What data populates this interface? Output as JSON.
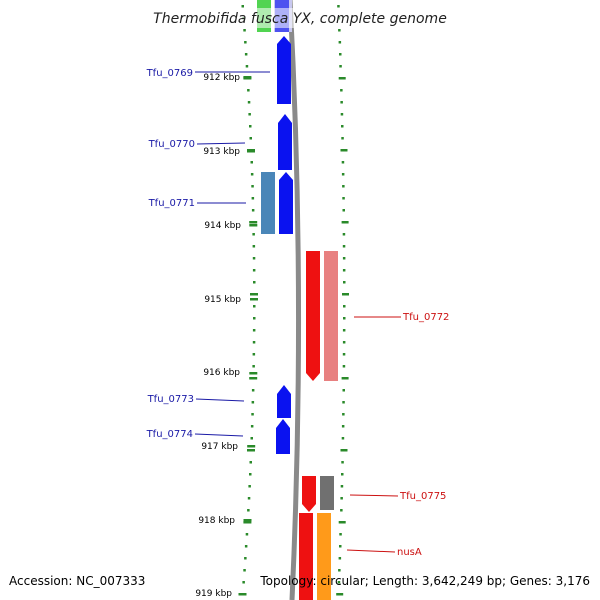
{
  "title": "Thermobifida fusca YX, complete genome",
  "footer": {
    "accession": "Accession: NC_007333",
    "summary": "Topology: circular; Length: 3,642,249 bp; Genes: 3,176"
  },
  "colors": {
    "blue": "#0a12f0",
    "steel_blue": "#4a86b8",
    "red": "#ee1111",
    "pink": "#e88080",
    "gray": "#707070",
    "orange": "#ff9a1a",
    "green": "#33cc33",
    "ruler_green": "#2a8a2a",
    "backbone": "#888888"
  },
  "ruler_labels": [
    "912 kbp",
    "913 kbp",
    "914 kbp",
    "915 kbp",
    "916 kbp",
    "917 kbp",
    "918 kbp",
    "919 kbp"
  ],
  "gene_labels": {
    "tfu_0769": "Tfu_0769",
    "tfu_0770": "Tfu_0770",
    "tfu_0771": "Tfu_0771",
    "tfu_0772": "Tfu_0772",
    "tfu_0773": "Tfu_0773",
    "tfu_0774": "Tfu_0774",
    "tfu_0775": "Tfu_0775",
    "nusA": "nusA"
  }
}
